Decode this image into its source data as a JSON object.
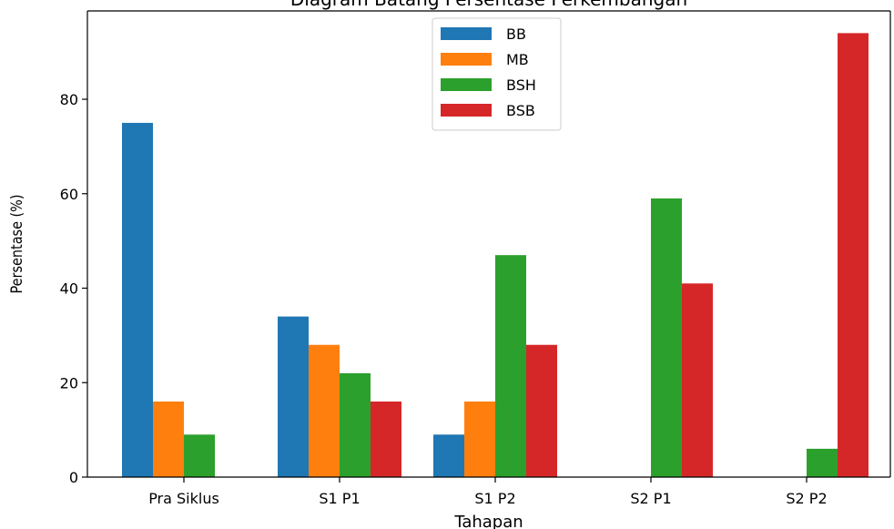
{
  "chart_data": {
    "type": "bar",
    "title": "Diagram Batang Persentase Perkembangan",
    "xlabel": "Tahapan",
    "ylabel": "Persentase (%)",
    "categories": [
      "Pra Siklus",
      "S1 P1",
      "S1 P2",
      "S2 P1",
      "S2 P2"
    ],
    "series": [
      {
        "name": "BB",
        "color": "#1f77b4",
        "values": [
          75,
          34,
          9,
          0,
          0
        ]
      },
      {
        "name": "MB",
        "color": "#ff7f0e",
        "values": [
          16,
          28,
          16,
          0,
          0
        ]
      },
      {
        "name": "BSH",
        "color": "#2ca02c",
        "values": [
          9,
          22,
          47,
          59,
          6
        ]
      },
      {
        "name": "BSB",
        "color": "#d62728",
        "values": [
          0,
          16,
          28,
          41,
          94
        ]
      }
    ],
    "yticks": [
      "0",
      "20",
      "40",
      "60",
      "80"
    ],
    "ylim": [
      0,
      98.7
    ],
    "grid": false,
    "legend_position": "top-center"
  }
}
